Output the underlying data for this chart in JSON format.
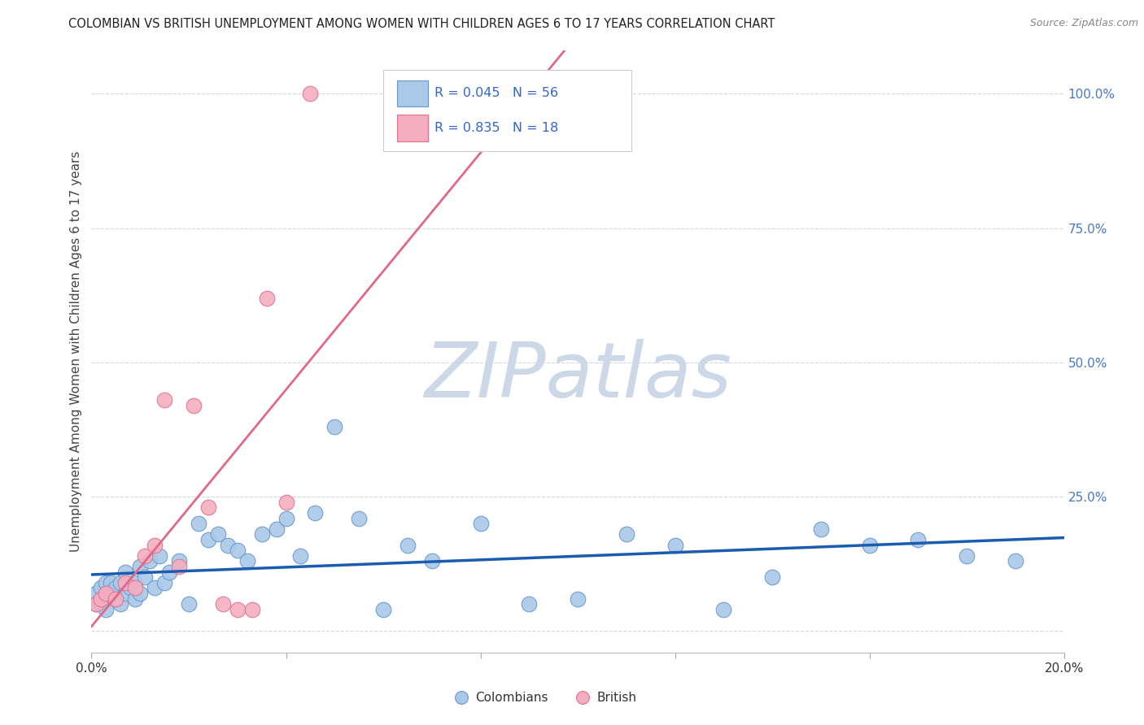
{
  "title": "COLOMBIAN VS BRITISH UNEMPLOYMENT AMONG WOMEN WITH CHILDREN AGES 6 TO 17 YEARS CORRELATION CHART",
  "source": "Source: ZipAtlas.com",
  "ylabel": "Unemployment Among Women with Children Ages 6 to 17 years",
  "xlim": [
    0.0,
    0.2
  ],
  "ylim": [
    -0.04,
    1.08
  ],
  "xticks": [
    0.0,
    0.04,
    0.08,
    0.12,
    0.16,
    0.2
  ],
  "xticklabels": [
    "0.0%",
    "",
    "",
    "",
    "",
    "20.0%"
  ],
  "yticks": [
    0.0,
    0.25,
    0.5,
    0.75,
    1.0
  ],
  "yticklabels": [
    "",
    "25.0%",
    "50.0%",
    "75.0%",
    "100.0%"
  ],
  "colombian_x": [
    0.001,
    0.001,
    0.002,
    0.002,
    0.003,
    0.003,
    0.003,
    0.004,
    0.004,
    0.005,
    0.005,
    0.006,
    0.006,
    0.007,
    0.007,
    0.008,
    0.009,
    0.009,
    0.01,
    0.01,
    0.011,
    0.012,
    0.013,
    0.014,
    0.015,
    0.016,
    0.018,
    0.02,
    0.022,
    0.024,
    0.026,
    0.028,
    0.03,
    0.032,
    0.035,
    0.038,
    0.04,
    0.043,
    0.046,
    0.05,
    0.055,
    0.06,
    0.065,
    0.07,
    0.08,
    0.09,
    0.1,
    0.11,
    0.12,
    0.13,
    0.14,
    0.15,
    0.16,
    0.17,
    0.18,
    0.19
  ],
  "colombian_y": [
    0.07,
    0.05,
    0.08,
    0.05,
    0.06,
    0.09,
    0.04,
    0.07,
    0.09,
    0.06,
    0.08,
    0.05,
    0.09,
    0.07,
    0.11,
    0.08,
    0.06,
    0.09,
    0.07,
    0.12,
    0.1,
    0.13,
    0.08,
    0.14,
    0.09,
    0.11,
    0.13,
    0.05,
    0.2,
    0.17,
    0.18,
    0.16,
    0.15,
    0.13,
    0.18,
    0.19,
    0.21,
    0.14,
    0.22,
    0.38,
    0.21,
    0.04,
    0.16,
    0.13,
    0.2,
    0.05,
    0.06,
    0.18,
    0.16,
    0.04,
    0.1,
    0.19,
    0.16,
    0.17,
    0.14,
    0.13
  ],
  "british_x": [
    0.001,
    0.002,
    0.003,
    0.005,
    0.007,
    0.009,
    0.011,
    0.013,
    0.015,
    0.018,
    0.021,
    0.024,
    0.027,
    0.03,
    0.033,
    0.036,
    0.04,
    0.045
  ],
  "british_y": [
    0.05,
    0.06,
    0.07,
    0.06,
    0.09,
    0.08,
    0.14,
    0.16,
    0.43,
    0.12,
    0.42,
    0.23,
    0.05,
    0.04,
    0.04,
    0.62,
    0.24,
    1.0
  ],
  "colombian_color": "#aac8e8",
  "british_color": "#f5aec0",
  "colombian_edge": "#6699cc",
  "british_edge": "#e07090",
  "trendline_colombian_color": "#1a5cb0",
  "trendline_british_color": "#e06888",
  "legend_R_colombian": "0.045",
  "legend_N_colombian": "56",
  "legend_R_british": "0.835",
  "legend_N_british": "18",
  "watermark": "ZIPatlas",
  "watermark_color": "#ccd8e8",
  "background_color": "#ffffff",
  "grid_color": "#d0d8e4",
  "title_color": "#222222",
  "axis_label_color": "#444444",
  "right_tick_color": "#4477cc",
  "bottom_tick_label_color": "#333333",
  "legend_text_color": "#3366cc",
  "marker_size": 180,
  "trendline_col_lw": 2.5,
  "trendline_brit_lw": 2.0
}
